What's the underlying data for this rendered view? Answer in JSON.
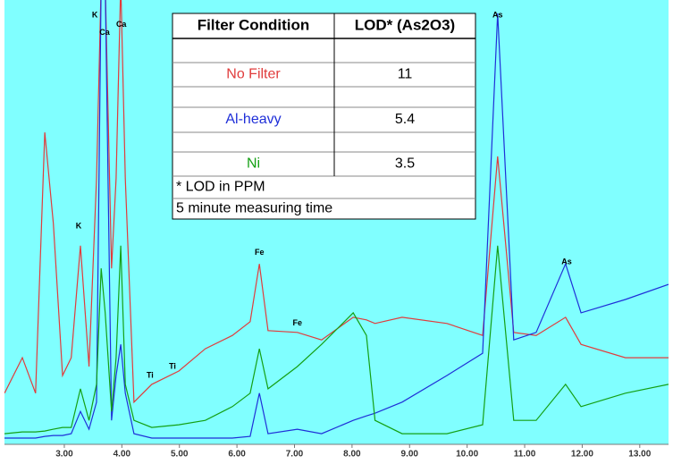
{
  "chart_data": {
    "type": "line",
    "x": [
      1.96,
      2.27,
      2.5,
      2.66,
      2.81,
      2.97,
      3.12,
      3.28,
      3.43,
      3.56,
      3.64,
      3.71,
      3.82,
      3.9,
      3.98,
      4.06,
      4.21,
      4.52,
      4.99,
      5.45,
      5.92,
      6.23,
      6.39,
      6.54,
      7.05,
      7.47,
      8.02,
      8.25,
      8.4,
      8.87,
      9.65,
      10.27,
      10.53,
      10.81,
      11.2,
      11.71,
      11.98,
      12.75,
      13.5
    ],
    "xlim": [
      1.96,
      13.5
    ],
    "ylim": [
      0,
      100
    ],
    "xticks": [
      {
        "value": 3,
        "label": "3.00"
      },
      {
        "value": 4,
        "label": "4.00"
      },
      {
        "value": 5,
        "label": "5.00"
      },
      {
        "value": 6,
        "label": "6.00"
      },
      {
        "value": 7,
        "label": "7.00"
      },
      {
        "value": 8,
        "label": "8.00"
      },
      {
        "value": 9,
        "label": "9.00"
      },
      {
        "value": 10,
        "label": "10.00"
      },
      {
        "value": 11,
        "label": "11.00"
      },
      {
        "value": 12,
        "label": "12.00"
      },
      {
        "value": 13,
        "label": "13.00"
      }
    ],
    "background": "#80ffff",
    "series": [
      {
        "color": "#e03c3c",
        "values": [
          11.5,
          19.5,
          11.5,
          70.2,
          49.7,
          15.5,
          19.5,
          44.7,
          17.5,
          59.8,
          104,
          104,
          39.6,
          59.8,
          104,
          59.8,
          9.5,
          13.5,
          16.5,
          21.5,
          24.5,
          27.6,
          40.6,
          25.6,
          25.2,
          23.5,
          28.6,
          28,
          27.2,
          28.6,
          27.2,
          24.5,
          64.8,
          25.2,
          24.5,
          28.6,
          22.5,
          19.5,
          19.5
        ]
      },
      {
        "color": "#1f2fd8",
        "values": [
          1.4,
          1.4,
          1.4,
          1.8,
          2,
          2,
          2.4,
          7.4,
          3.4,
          9.5,
          104,
          104,
          5.4,
          15.5,
          22.5,
          11.5,
          2.4,
          1.4,
          1.4,
          1.4,
          1.4,
          1.8,
          11.5,
          2.4,
          3.4,
          2.4,
          5.4,
          6.4,
          7,
          9.5,
          15.5,
          20.5,
          97,
          23.5,
          25.2,
          40.6,
          29.6,
          32.6,
          36
        ]
      },
      {
        "color": "#14a014",
        "values": [
          2.4,
          2.8,
          2.8,
          3,
          3.4,
          3.8,
          3.8,
          12.5,
          5.4,
          13.5,
          39.6,
          29.6,
          7.4,
          19.5,
          44.7,
          13.5,
          5.4,
          3.8,
          4.4,
          5.4,
          8.5,
          11.5,
          21.5,
          12.5,
          17.5,
          22.5,
          29.6,
          24.5,
          5.4,
          2.4,
          2.4,
          4.4,
          44.7,
          5.4,
          5.4,
          13.5,
          8.5,
          11.5,
          13.5
        ]
      }
    ],
    "annotations": [
      {
        "text": "K",
        "x": 3.53,
        "y": 96.6
      },
      {
        "text": "Ca",
        "x": 3.7,
        "y": 92.6
      },
      {
        "text": "Ca",
        "x": 3.99,
        "y": 94.4
      },
      {
        "text": "K",
        "x": 3.25,
        "y": 49.1
      },
      {
        "text": "Ti",
        "x": 4.49,
        "y": 15.5
      },
      {
        "text": "Ti",
        "x": 4.88,
        "y": 17.5
      },
      {
        "text": "Fe",
        "x": 6.39,
        "y": 43.1
      },
      {
        "text": "Fe",
        "x": 7.05,
        "y": 27.2
      },
      {
        "text": "As",
        "x": 10.53,
        "y": 96.6
      },
      {
        "text": "As",
        "x": 11.73,
        "y": 41
      }
    ]
  },
  "table": {
    "header": [
      "Filter Condition",
      "LOD* (As2O3)"
    ],
    "rows": [
      {
        "filter": "No Filter",
        "lod": 11,
        "color": "#e03c3c"
      },
      {
        "filter": "Al-heavy",
        "lod": 5.4,
        "color": "#1f2fd8"
      },
      {
        "filter": "Ni",
        "lod": 3.5,
        "color": "#14a014"
      }
    ],
    "notes": [
      "* LOD in PPM",
      "5 minute measuring time"
    ]
  }
}
